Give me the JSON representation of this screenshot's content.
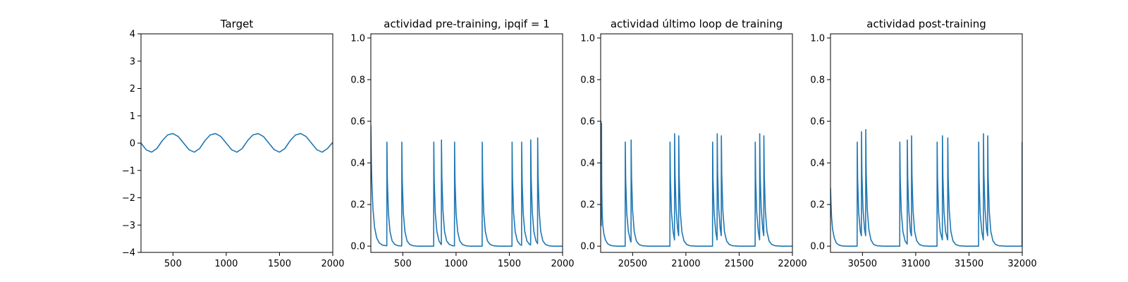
{
  "chart_data": [
    {
      "type": "line",
      "title": "Target",
      "xlim": [
        200,
        2000
      ],
      "ylim": [
        -4,
        4
      ],
      "xticks": [
        500,
        1000,
        1500,
        2000
      ],
      "yticks": [
        -4,
        -3,
        -2,
        -1,
        0,
        1,
        2,
        3,
        4
      ],
      "xtick_labels": [
        "500",
        "1000",
        "1500",
        "2000"
      ],
      "ytick_labels": [
        "−4",
        "−3",
        "−2",
        "−1",
        "0",
        "1",
        "2",
        "3",
        "4"
      ],
      "color": "#1f77b4",
      "grid": false,
      "series": [
        {
          "x": [
            200,
            250,
            300,
            350,
            400,
            450,
            500,
            550,
            600,
            650,
            700,
            750,
            800,
            850,
            900,
            950,
            1000,
            1050,
            1100,
            1150,
            1200,
            1250,
            1300,
            1350,
            1400,
            1450,
            1500,
            1550,
            1600,
            1650,
            1700,
            1750,
            1800,
            1850,
            1900,
            1950,
            2000
          ],
          "y": [
            0.0,
            -0.25,
            -0.33,
            -0.19,
            0.09,
            0.3,
            0.35,
            0.24,
            0.0,
            -0.24,
            -0.33,
            -0.2,
            0.09,
            0.3,
            0.35,
            0.24,
            0.0,
            -0.24,
            -0.33,
            -0.2,
            0.09,
            0.3,
            0.35,
            0.24,
            0.0,
            -0.24,
            -0.33,
            -0.2,
            0.09,
            0.3,
            0.35,
            0.24,
            0.0,
            -0.24,
            -0.33,
            -0.2,
            0.03
          ]
        }
      ]
    },
    {
      "type": "line",
      "title": "actividad pre-training, ipqif = 1",
      "xlim": [
        200,
        2000
      ],
      "ylim": [
        -0.03,
        1.02
      ],
      "xticks": [
        500,
        1000,
        1500,
        2000
      ],
      "yticks": [
        0.0,
        0.2,
        0.4,
        0.6,
        0.8,
        1.0
      ],
      "xtick_labels": [
        "500",
        "1000",
        "1500",
        "2000"
      ],
      "ytick_labels": [
        "0.0",
        "0.2",
        "0.4",
        "0.6",
        "0.8",
        "1.0"
      ],
      "color": "#1f77b4",
      "grid": false,
      "series": [
        {
          "x": [
            200,
            205,
            210,
            220,
            235,
            255,
            280,
            310,
            345,
            350,
            351,
            355,
            365,
            380,
            400,
            425,
            455,
            480,
            490,
            491,
            495,
            505,
            520,
            540,
            565,
            595,
            640,
            700,
            760,
            790,
            791,
            795,
            805,
            820,
            840,
            860,
            862,
            863,
            867,
            877,
            892,
            912,
            937,
            967,
            985,
            986,
            990,
            1000,
            1015,
            1035,
            1060,
            1090,
            1130,
            1180,
            1240,
            1245,
            1246,
            1250,
            1260,
            1275,
            1295,
            1320,
            1350,
            1400,
            1460,
            1520,
            1525,
            1526,
            1530,
            1540,
            1555,
            1575,
            1600,
            1615,
            1616,
            1620,
            1630,
            1645,
            1665,
            1690,
            1700,
            1701,
            1705,
            1715,
            1730,
            1750,
            1765,
            1766,
            1770,
            1780,
            1795,
            1815,
            1840,
            1870,
            1900,
            1950,
            2000
          ],
          "y": [
            0.58,
            0.4,
            0.3,
            0.18,
            0.09,
            0.04,
            0.015,
            0.005,
            0.002,
            0.002,
            0.5,
            0.32,
            0.16,
            0.07,
            0.025,
            0.008,
            0.002,
            0.001,
            0.001,
            0.5,
            0.32,
            0.16,
            0.07,
            0.025,
            0.008,
            0.002,
            0.0,
            0.0,
            0.0,
            0.0,
            0.5,
            0.32,
            0.16,
            0.07,
            0.025,
            0.008,
            0.008,
            0.51,
            0.33,
            0.17,
            0.07,
            0.025,
            0.008,
            0.002,
            0.001,
            0.5,
            0.32,
            0.16,
            0.07,
            0.025,
            0.008,
            0.002,
            0.0,
            0.0,
            0.0,
            0.0,
            0.5,
            0.32,
            0.16,
            0.07,
            0.025,
            0.008,
            0.002,
            0.0,
            0.0,
            0.0,
            0.0,
            0.5,
            0.32,
            0.16,
            0.07,
            0.025,
            0.008,
            0.004,
            0.5,
            0.32,
            0.16,
            0.07,
            0.025,
            0.008,
            0.006,
            0.51,
            0.33,
            0.17,
            0.07,
            0.025,
            0.012,
            0.52,
            0.34,
            0.17,
            0.07,
            0.025,
            0.008,
            0.002,
            0.0,
            0.0,
            0.0
          ]
        }
      ]
    },
    {
      "type": "line",
      "title": "actividad último loop de training",
      "xlim": [
        20200,
        22000
      ],
      "ylim": [
        -0.03,
        1.02
      ],
      "xticks": [
        20500,
        21000,
        21500,
        22000
      ],
      "yticks": [
        0.0,
        0.2,
        0.4,
        0.6,
        0.8,
        1.0
      ],
      "xtick_labels": [
        "20500",
        "21000",
        "21500",
        "22000"
      ],
      "ytick_labels": [
        "0.0",
        "0.2",
        "0.4",
        "0.6",
        "0.8",
        "1.0"
      ],
      "color": "#1f77b4",
      "grid": false,
      "series": [
        {
          "x": [
            20200,
            20203,
            20205,
            20208,
            20210,
            20213,
            20215,
            20220,
            20230,
            20245,
            20265,
            20290,
            20320,
            20360,
            20400,
            20430,
            20431,
            20435,
            20445,
            20460,
            20480,
            20485,
            20486,
            20490,
            20500,
            20515,
            20535,
            20560,
            20590,
            20650,
            20750,
            20850,
            20851,
            20855,
            20865,
            20880,
            20893,
            20894,
            20898,
            20908,
            20923,
            20932,
            20933,
            20937,
            20947,
            20962,
            20982,
            21007,
            21037,
            21100,
            21180,
            21250,
            21251,
            21255,
            21265,
            21280,
            21293,
            21294,
            21298,
            21308,
            21323,
            21332,
            21333,
            21337,
            21347,
            21362,
            21382,
            21407,
            21437,
            21500,
            21600,
            21650,
            21651,
            21655,
            21665,
            21680,
            21692,
            21693,
            21697,
            21707,
            21722,
            21731,
            21732,
            21736,
            21746,
            21761,
            21781,
            21806,
            21836,
            21900,
            22000
          ],
          "y": [
            0.1,
            0.6,
            0.1,
            0.59,
            0.3,
            0.2,
            0.15,
            0.1,
            0.06,
            0.03,
            0.012,
            0.004,
            0.001,
            0.0,
            0.0,
            0.0,
            0.5,
            0.32,
            0.16,
            0.07,
            0.025,
            0.02,
            0.51,
            0.33,
            0.17,
            0.07,
            0.025,
            0.008,
            0.002,
            0.0,
            0.0,
            0.0,
            0.5,
            0.32,
            0.16,
            0.07,
            0.03,
            0.54,
            0.35,
            0.18,
            0.08,
            0.05,
            0.53,
            0.34,
            0.17,
            0.07,
            0.025,
            0.008,
            0.002,
            0.0,
            0.0,
            0.0,
            0.5,
            0.32,
            0.16,
            0.07,
            0.03,
            0.54,
            0.35,
            0.18,
            0.08,
            0.05,
            0.53,
            0.34,
            0.17,
            0.07,
            0.025,
            0.008,
            0.002,
            0.0,
            0.0,
            0.0,
            0.5,
            0.32,
            0.16,
            0.07,
            0.03,
            0.54,
            0.35,
            0.18,
            0.08,
            0.05,
            0.53,
            0.34,
            0.17,
            0.07,
            0.025,
            0.008,
            0.002,
            0.0,
            0.0
          ]
        }
      ]
    },
    {
      "type": "line",
      "title": "actividad post-training",
      "xlim": [
        30200,
        32000
      ],
      "ylim": [
        -0.03,
        1.02
      ],
      "xticks": [
        30500,
        31000,
        31500,
        32000
      ],
      "yticks": [
        0.0,
        0.2,
        0.4,
        0.6,
        0.8,
        1.0
      ],
      "xtick_labels": [
        "30500",
        "31000",
        "31500",
        "32000"
      ],
      "ytick_labels": [
        "0.0",
        "0.2",
        "0.4",
        "0.6",
        "0.8",
        "1.0"
      ],
      "color": "#1f77b4",
      "grid": false,
      "series": [
        {
          "x": [
            30200,
            30205,
            30210,
            30220,
            30235,
            30255,
            30280,
            30310,
            30350,
            30400,
            30450,
            30451,
            30455,
            30465,
            30480,
            30490,
            30491,
            30495,
            30505,
            30520,
            30530,
            30531,
            30535,
            30545,
            30560,
            30580,
            30605,
            30635,
            30700,
            30800,
            30850,
            30851,
            30855,
            30865,
            30880,
            30900,
            30920,
            30921,
            30925,
            30935,
            30950,
            30960,
            30961,
            30965,
            30975,
            30990,
            31010,
            31035,
            31065,
            31120,
            31200,
            31201,
            31205,
            31215,
            31230,
            31250,
            31251,
            31255,
            31265,
            31280,
            31300,
            31301,
            31305,
            31315,
            31330,
            31350,
            31375,
            31405,
            31470,
            31550,
            31590,
            31591,
            31595,
            31605,
            31620,
            31635,
            31636,
            31640,
            31650,
            31665,
            31675,
            31676,
            31680,
            31690,
            31705,
            31725,
            31750,
            31780,
            31850,
            31950,
            31998,
            31999,
            32000
          ],
          "y": [
            0.28,
            0.2,
            0.14,
            0.08,
            0.04,
            0.015,
            0.005,
            0.001,
            0.0,
            0.0,
            0.0,
            0.5,
            0.32,
            0.16,
            0.07,
            0.05,
            0.55,
            0.35,
            0.18,
            0.08,
            0.05,
            0.56,
            0.36,
            0.18,
            0.08,
            0.03,
            0.008,
            0.002,
            0.0,
            0.0,
            0.0,
            0.5,
            0.32,
            0.16,
            0.07,
            0.025,
            0.01,
            0.51,
            0.33,
            0.17,
            0.07,
            0.05,
            0.53,
            0.34,
            0.17,
            0.07,
            0.025,
            0.008,
            0.002,
            0.0,
            0.0,
            0.5,
            0.32,
            0.16,
            0.07,
            0.03,
            0.53,
            0.34,
            0.17,
            0.07,
            0.03,
            0.52,
            0.33,
            0.17,
            0.07,
            0.025,
            0.008,
            0.002,
            0.0,
            0.0,
            0.0,
            0.5,
            0.32,
            0.16,
            0.07,
            0.03,
            0.54,
            0.35,
            0.18,
            0.08,
            0.05,
            0.53,
            0.34,
            0.17,
            0.07,
            0.025,
            0.008,
            0.002,
            0.0,
            0.0,
            0.0,
            0.5,
            0.5
          ]
        }
      ]
    }
  ]
}
